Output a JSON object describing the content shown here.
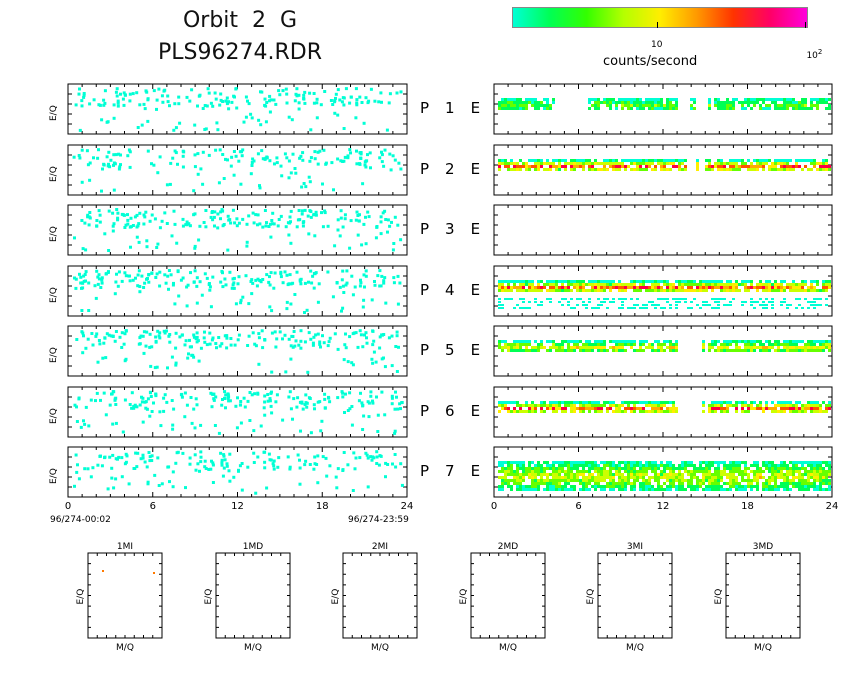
{
  "header": {
    "title_line1": "Orbit  2  G",
    "title_line2": "PLS96274.RDR"
  },
  "colorbar": {
    "label": "counts/second",
    "tick_10": "10",
    "tick_100_base": "10",
    "tick_100_exp": "2",
    "colors": [
      "#00ffd5",
      "#00ff55",
      "#33ff00",
      "#b3ff00",
      "#ffee00",
      "#ff9900",
      "#ff3300",
      "#ff0066",
      "#ff00dd"
    ]
  },
  "rows": [
    {
      "p": "P",
      "num": "1",
      "e": "E"
    },
    {
      "p": "P",
      "num": "2",
      "e": "E"
    },
    {
      "p": "P",
      "num": "3",
      "e": "E"
    },
    {
      "p": "P",
      "num": "4",
      "e": "E"
    },
    {
      "p": "P",
      "num": "5",
      "e": "E"
    },
    {
      "p": "P",
      "num": "6",
      "e": "E"
    },
    {
      "p": "P",
      "num": "7",
      "e": "E"
    }
  ],
  "axis": {
    "ylabel": "E/Q",
    "xticks": [
      "0",
      "6",
      "12",
      "18",
      "24"
    ],
    "start_time": "96/274-00:02",
    "end_time": "96/274-23:59"
  },
  "bottom_panels": [
    {
      "title": "1MI",
      "xlabel": "M/Q",
      "ylabel": "E/Q"
    },
    {
      "title": "1MD",
      "xlabel": "M/Q",
      "ylabel": "E/Q"
    },
    {
      "title": "2MI",
      "xlabel": "M/Q",
      "ylabel": "E/Q"
    },
    {
      "title": "2MD",
      "xlabel": "M/Q",
      "ylabel": "E/Q"
    },
    {
      "title": "3MI",
      "xlabel": "M/Q",
      "ylabel": "E/Q"
    },
    {
      "title": "3MD",
      "xlabel": "M/Q",
      "ylabel": "E/Q"
    }
  ],
  "chart_data": {
    "type": "heatmap",
    "x_range_hours": [
      0,
      24
    ],
    "x_ticks": [
      0,
      6,
      12,
      18,
      24
    ],
    "colorbar_ticks": [
      10,
      100
    ],
    "colorbar_scale": "log",
    "colorbar_label": "counts/second",
    "left_column": "P1–P7 sparse cyan counts (low level, ~1 count/s) scattered over 0–24 h",
    "right_column": {
      "E1": {
        "band_intensity": "low",
        "gaps_hours": [
          [
            4.0,
            6.5
          ],
          [
            13.0,
            15.0
          ]
        ]
      },
      "E2": {
        "band_intensity": "high",
        "gaps_hours": [
          [
            13.5,
            15.5
          ]
        ]
      },
      "E3": {
        "band_intensity": "none"
      },
      "E4": {
        "band_intensity": "high",
        "secondary_band": "low"
      },
      "E5": {
        "band_intensity": "medium",
        "gaps_hours": [
          [
            13.0,
            15.0
          ]
        ]
      },
      "E6": {
        "band_intensity": "high",
        "gaps_hours": [
          [
            13.0,
            15.0
          ]
        ]
      },
      "E7": {
        "band_intensity": "medium",
        "spread": "wide"
      }
    },
    "bottom_panels_points": {
      "1MI": "two faint orange points near top corners",
      "1MD": "empty",
      "2MI": "empty",
      "2MD": "empty",
      "3MI": "empty",
      "3MD": "empty"
    }
  }
}
